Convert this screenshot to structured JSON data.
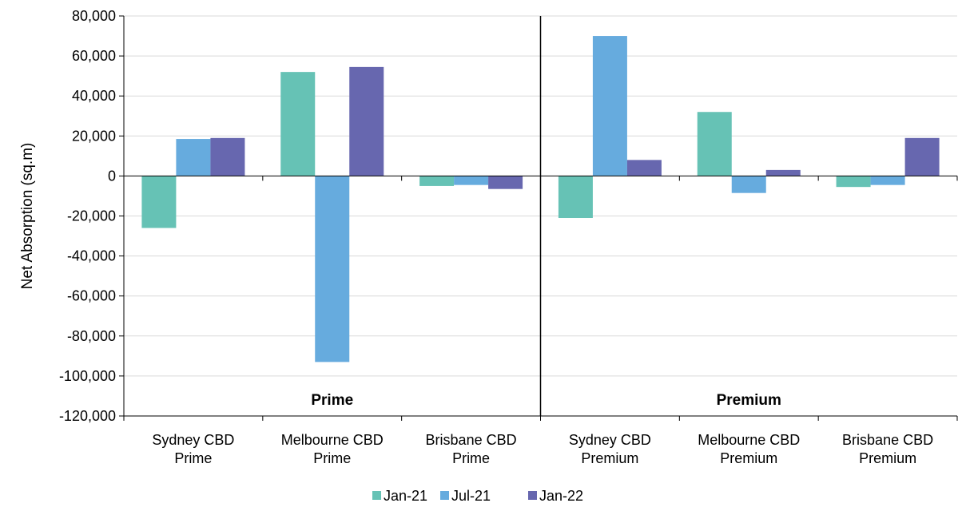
{
  "chart_data": {
    "type": "bar",
    "ylabel": "Net Absorption (sq.m)",
    "ylim": [
      -120000,
      80000
    ],
    "yticks": [
      80000,
      60000,
      40000,
      20000,
      0,
      -20000,
      -40000,
      -60000,
      -80000,
      -100000,
      -120000
    ],
    "ytick_labels": [
      "80,000",
      "60,000",
      "40,000",
      "20,000",
      "0",
      "-20,000",
      "-40,000",
      "-60,000",
      "-80,000",
      "-100,000",
      "-120,000"
    ],
    "grid": true,
    "legend_position": "bottom",
    "categories": [
      [
        "Sydney CBD",
        "Prime"
      ],
      [
        "Melbourne CBD",
        "Prime"
      ],
      [
        "Brisbane CBD",
        "Prime"
      ],
      [
        "Sydney CBD",
        "Premium"
      ],
      [
        "Melbourne CBD",
        "Premium"
      ],
      [
        "Brisbane CBD",
        "Premium"
      ]
    ],
    "groups": [
      {
        "label": "Prime",
        "categories": [
          0,
          1,
          2
        ]
      },
      {
        "label": "Premium",
        "categories": [
          3,
          4,
          5
        ]
      }
    ],
    "series": [
      {
        "name": "Jan-21",
        "color": "#66C2B5",
        "values": [
          -26000,
          52000,
          -5000,
          -21000,
          32000,
          -5500
        ]
      },
      {
        "name": "Jul-21",
        "color": "#66ABDE",
        "values": [
          18500,
          -93000,
          -4500,
          70000,
          -8500,
          -4500
        ]
      },
      {
        "name": "Jan-22",
        "color": "#6767AF",
        "values": [
          19000,
          54500,
          -6500,
          8000,
          3000,
          19000
        ]
      }
    ]
  }
}
